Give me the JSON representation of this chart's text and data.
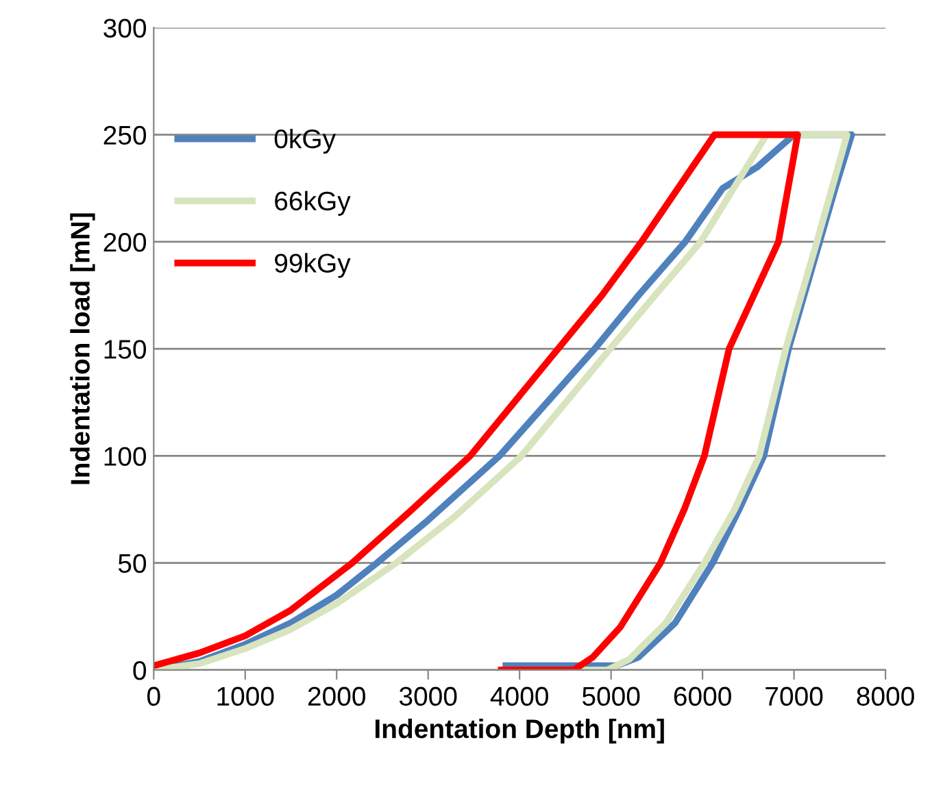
{
  "chart_data": {
    "type": "line",
    "xlabel": "Indentation Depth [nm]",
    "ylabel": "Indentation load [mN]",
    "xlim": [
      0,
      8000
    ],
    "ylim": [
      0,
      300
    ],
    "xticks": [
      0,
      1000,
      2000,
      3000,
      4000,
      5000,
      6000,
      7000,
      8000
    ],
    "yticks": [
      0,
      50,
      100,
      150,
      200,
      250,
      300
    ],
    "grid": "y",
    "legend": "top left",
    "marker": "none",
    "line_style": "solid",
    "series": [
      {
        "name": "0kGy",
        "color": "#4f81bd",
        "x": [
          0,
          500,
          1000,
          1500,
          2000,
          2440,
          3000,
          3780,
          4820,
          5300,
          5810,
          6220,
          6600,
          7000,
          7630,
          7450,
          7280,
          6940,
          6670,
          6400,
          6110,
          5700,
          5300,
          5060,
          4500,
          3850
        ],
        "values": [
          0,
          4,
          12,
          22,
          35,
          50,
          70,
          100,
          150,
          175,
          200,
          225,
          235,
          250,
          250,
          225,
          200,
          150,
          100,
          75,
          50,
          22,
          6,
          2,
          2,
          2
        ]
      },
      {
        "name": "66kGy",
        "color": "#d7e4bd",
        "x": [
          0,
          500,
          1000,
          1500,
          2000,
          2650,
          3300,
          4020,
          4990,
          5480,
          5980,
          6700,
          7580,
          7250,
          6910,
          6620,
          6350,
          6020,
          5600,
          5200,
          4960,
          4600
        ],
        "values": [
          0,
          3,
          10,
          19,
          31,
          50,
          72,
          100,
          150,
          175,
          200,
          250,
          250,
          200,
          150,
          100,
          75,
          50,
          22,
          5,
          0,
          0
        ]
      },
      {
        "name": "99kGy",
        "color": "#ff0000",
        "x": [
          0,
          500,
          1000,
          1500,
          2170,
          2800,
          3460,
          4420,
          4900,
          5333,
          6130,
          7040,
          6830,
          6290,
          6020,
          5800,
          5540,
          5100,
          4800,
          4590,
          3800
        ],
        "values": [
          2,
          8,
          16,
          28,
          50,
          74,
          100,
          150,
          175,
          200,
          250,
          250,
          200,
          150,
          100,
          75,
          50,
          20,
          6,
          0,
          0
        ]
      }
    ]
  }
}
